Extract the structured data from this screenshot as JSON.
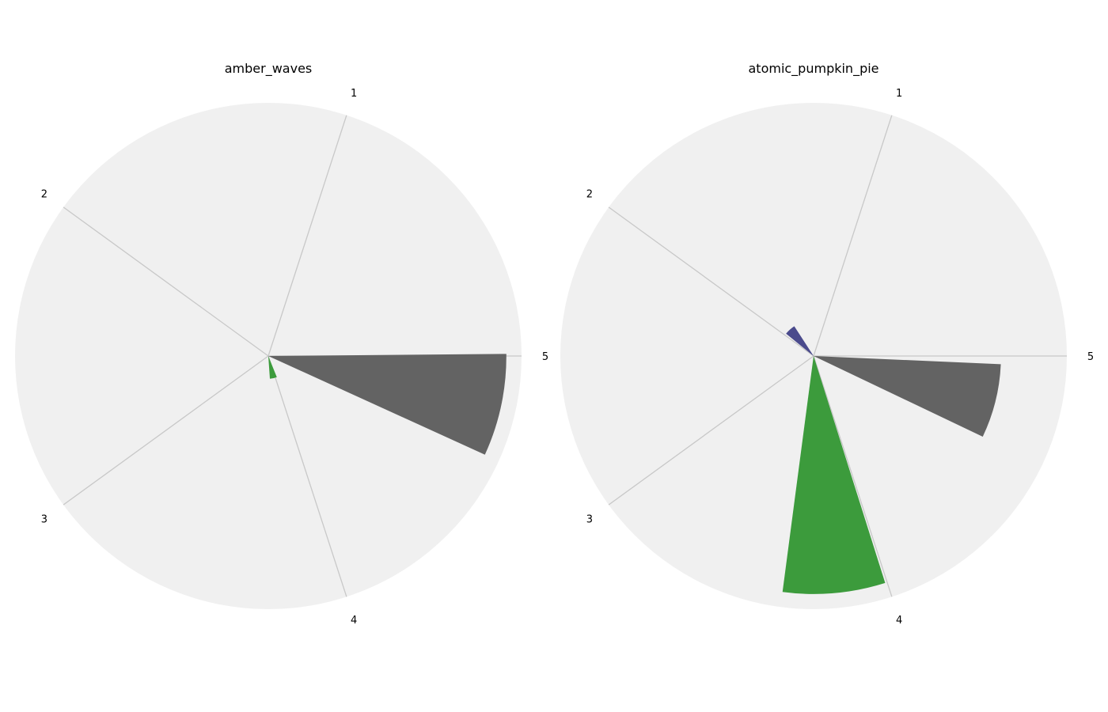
{
  "chart_data": [
    {
      "type": "polar-bar",
      "title": "amber_waves",
      "categories": [
        "1",
        "2",
        "3",
        "4",
        "5"
      ],
      "rlim": [
        0,
        1
      ],
      "grid": true,
      "series": [
        {
          "category": "1",
          "angle_deg": 72,
          "width_deg": 18,
          "value": 0.0,
          "color": "#4a4a8c"
        },
        {
          "category": "4",
          "angle_deg": 283,
          "width_deg": 18,
          "value": 0.09,
          "color": "#3c9b3c"
        },
        {
          "category": "5",
          "angle_deg": 348,
          "width_deg": 25,
          "value": 0.94,
          "color": "#636363"
        }
      ],
      "colors": {
        "background": "#f0f0f0",
        "grid": "#c8c8c8"
      }
    },
    {
      "type": "polar-bar",
      "title": "atomic_pumpkin_pie",
      "categories": [
        "1",
        "2",
        "3",
        "4",
        "5"
      ],
      "rlim": [
        0,
        1
      ],
      "grid": true,
      "series": [
        {
          "category": "2",
          "angle_deg": 132,
          "width_deg": 18,
          "value": 0.14,
          "color": "#4a4a8c"
        },
        {
          "category": "4",
          "angle_deg": 275,
          "width_deg": 25,
          "value": 0.94,
          "color": "#3c9b3c"
        },
        {
          "category": "5",
          "angle_deg": 346,
          "width_deg": 23,
          "value": 0.74,
          "color": "#636363"
        }
      ],
      "colors": {
        "background": "#f0f0f0",
        "grid": "#c8c8c8"
      }
    }
  ]
}
